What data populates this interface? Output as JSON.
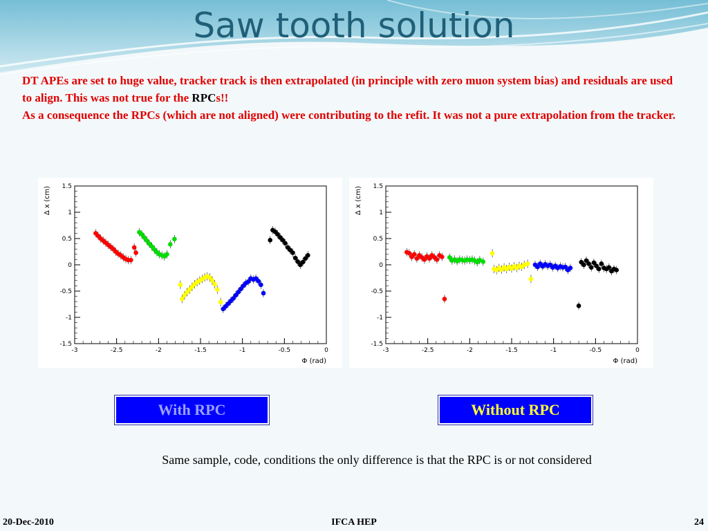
{
  "slide": {
    "title": "Saw tooth solution",
    "paragraph1_part1": "DT APEs are set to huge value, tracker track is then extrapolated (in principle with zero muon system bias) and residuals are used to align. This was not true for the ",
    "paragraph1_rpc": "RPC",
    "paragraph1_part2": "s!!",
    "paragraph2": "As a consequence the RPCs (which are not aligned) were contributing to the refit. It was not a pure extrapolation from the tracker.",
    "label_with": "With RPC",
    "label_without": "Without RPC",
    "note": "Same sample, code, conditions the only difference is that the RPC is or not considered",
    "footer_date": "20-Dec-2010",
    "footer_center": "IFCA HEP",
    "page_number": "24"
  },
  "colors": {
    "title": "#1f5f78",
    "body_text": "#e00000",
    "label_box": "#0000ff",
    "with_label_text": "#9aa0ff",
    "without_label_text": "#ffff33"
  },
  "chart_data": [
    {
      "type": "scatter",
      "xlabel": "Φ (rad)",
      "ylabel": "Δ x (cm)",
      "xlim": [
        -3,
        0
      ],
      "ylim": [
        -1.5,
        1.5
      ],
      "x_ticks": [
        "-3",
        "-2.5",
        "-2",
        "-1.5",
        "-1",
        "-0.5",
        "0"
      ],
      "y_ticks": [
        "-1.5",
        "-1",
        "-0.5",
        "0",
        "0.5",
        "1",
        "1.5"
      ],
      "series": [
        {
          "color": "#ff0000",
          "x": [
            -2.75,
            -2.72,
            -2.69,
            -2.66,
            -2.63,
            -2.6,
            -2.57,
            -2.54,
            -2.51,
            -2.48,
            -2.45,
            -2.42,
            -2.39,
            -2.36,
            -2.33,
            -2.29,
            -2.27
          ],
          "y": [
            0.6,
            0.55,
            0.5,
            0.46,
            0.42,
            0.38,
            0.34,
            0.3,
            0.25,
            0.21,
            0.18,
            0.14,
            0.11,
            0.09,
            0.09,
            0.33,
            0.23
          ]
        },
        {
          "color": "#00dd00",
          "x": [
            -2.23,
            -2.2,
            -2.17,
            -2.14,
            -2.11,
            -2.08,
            -2.05,
            -2.02,
            -1.99,
            -1.96,
            -1.93,
            -1.9,
            -1.86,
            -1.81
          ],
          "y": [
            0.62,
            0.58,
            0.52,
            0.46,
            0.4,
            0.35,
            0.29,
            0.24,
            0.2,
            0.18,
            0.16,
            0.2,
            0.39,
            0.49
          ]
        },
        {
          "color": "#ffff00",
          "x": [
            -1.74,
            -1.72,
            -1.69,
            -1.66,
            -1.63,
            -1.6,
            -1.57,
            -1.54,
            -1.51,
            -1.48,
            -1.45,
            -1.42,
            -1.39,
            -1.36,
            -1.33,
            -1.3,
            -1.26
          ],
          "y": [
            -0.38,
            -0.65,
            -0.58,
            -0.52,
            -0.47,
            -0.42,
            -0.37,
            -0.33,
            -0.3,
            -0.27,
            -0.24,
            -0.22,
            -0.24,
            -0.3,
            -0.37,
            -0.47,
            -0.71
          ]
        },
        {
          "color": "#0000ff",
          "x": [
            -1.23,
            -1.2,
            -1.17,
            -1.14,
            -1.11,
            -1.08,
            -1.05,
            -1.02,
            -0.99,
            -0.96,
            -0.93,
            -0.9,
            -0.87,
            -0.84,
            -0.81,
            -0.78,
            -0.75
          ],
          "y": [
            -0.84,
            -0.79,
            -0.74,
            -0.69,
            -0.64,
            -0.58,
            -0.52,
            -0.46,
            -0.4,
            -0.35,
            -0.32,
            -0.26,
            -0.28,
            -0.26,
            -0.31,
            -0.38,
            -0.54
          ]
        },
        {
          "color": "#000000",
          "x": [
            -0.67,
            -0.64,
            -0.61,
            -0.58,
            -0.55,
            -0.52,
            -0.49,
            -0.46,
            -0.43,
            -0.4,
            -0.37,
            -0.34,
            -0.31,
            -0.28,
            -0.25,
            -0.22
          ],
          "y": [
            0.47,
            0.66,
            0.63,
            0.58,
            0.52,
            0.47,
            0.41,
            0.33,
            0.28,
            0.23,
            0.13,
            0.06,
            0.0,
            0.05,
            0.12,
            0.18
          ]
        }
      ]
    },
    {
      "type": "scatter",
      "xlabel": "Φ (rad)",
      "ylabel": "Δ x (cm)",
      "xlim": [
        -3,
        0
      ],
      "ylim": [
        -1.5,
        1.5
      ],
      "x_ticks": [
        "-3",
        "-2.5",
        "-2",
        "-1.5",
        "-1",
        "-0.5",
        "0"
      ],
      "y_ticks": [
        "-1.5",
        "-1",
        "-0.5",
        "0",
        "0.5",
        "1",
        "1.5"
      ],
      "series": [
        {
          "color": "#ff0000",
          "x": [
            -2.75,
            -2.72,
            -2.69,
            -2.66,
            -2.63,
            -2.6,
            -2.57,
            -2.54,
            -2.51,
            -2.48,
            -2.45,
            -2.42,
            -2.39,
            -2.36,
            -2.33,
            -2.3
          ],
          "y": [
            0.24,
            0.22,
            0.15,
            0.2,
            0.12,
            0.18,
            0.14,
            0.1,
            0.16,
            0.12,
            0.18,
            0.14,
            0.1,
            0.18,
            0.15,
            -0.65
          ]
        },
        {
          "color": "#00dd00",
          "x": [
            -2.24,
            -2.21,
            -2.18,
            -2.15,
            -2.12,
            -2.09,
            -2.06,
            -2.03,
            -2.0,
            -1.97,
            -1.94,
            -1.91,
            -1.88,
            -1.84
          ],
          "y": [
            0.14,
            0.08,
            0.1,
            0.07,
            0.1,
            0.09,
            0.08,
            0.1,
            0.09,
            0.1,
            0.08,
            0.05,
            0.09,
            0.06
          ]
        },
        {
          "color": "#ffff00",
          "x": [
            -1.73,
            -1.71,
            -1.68,
            -1.65,
            -1.62,
            -1.59,
            -1.56,
            -1.53,
            -1.5,
            -1.47,
            -1.44,
            -1.41,
            -1.38,
            -1.35,
            -1.31,
            -1.27
          ],
          "y": [
            0.22,
            -0.08,
            -0.1,
            -0.06,
            -0.09,
            -0.05,
            -0.08,
            -0.04,
            -0.07,
            -0.03,
            -0.06,
            -0.02,
            -0.04,
            0.0,
            0.02,
            -0.27
          ]
        },
        {
          "color": "#0000ff",
          "x": [
            -1.22,
            -1.19,
            -1.16,
            -1.13,
            -1.1,
            -1.07,
            -1.04,
            -1.01,
            -0.98,
            -0.95,
            -0.92,
            -0.89,
            -0.86,
            -0.83,
            -0.8
          ],
          "y": [
            0.0,
            -0.04,
            0.02,
            -0.03,
            0.01,
            -0.02,
            0.0,
            -0.05,
            -0.02,
            -0.06,
            -0.03,
            -0.05,
            -0.04,
            -0.1,
            -0.06
          ]
        },
        {
          "color": "#000000",
          "x": [
            -0.7,
            -0.67,
            -0.64,
            -0.61,
            -0.58,
            -0.55,
            -0.52,
            -0.49,
            -0.46,
            -0.43,
            -0.4,
            -0.37,
            -0.34,
            -0.31,
            -0.28,
            -0.25
          ],
          "y": [
            -0.78,
            0.05,
            0.0,
            0.08,
            0.02,
            -0.05,
            0.04,
            -0.02,
            -0.08,
            0.02,
            -0.06,
            -0.08,
            -0.05,
            -0.12,
            -0.08,
            -0.1
          ]
        }
      ]
    }
  ]
}
